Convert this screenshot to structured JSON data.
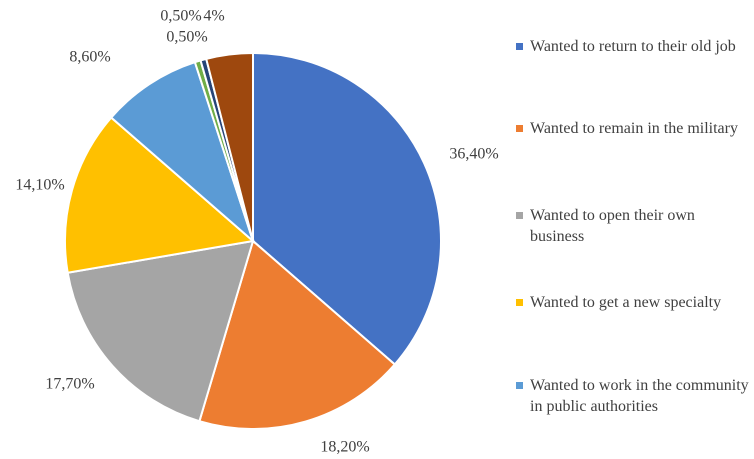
{
  "chart_data": {
    "type": "pie",
    "categories": [
      "Wanted to return to their old job",
      "Wanted to remain in the military",
      "Wanted to open their own business",
      "Wanted to get a new specialty",
      "Wanted to work in the community in public authorities",
      null,
      null,
      null
    ],
    "values": [
      36.4,
      18.2,
      17.7,
      14.1,
      8.6,
      0.5,
      0.5,
      4
    ],
    "value_labels": [
      "36,40%",
      "18,20%",
      "17,70%",
      "14,10%",
      "8,60%",
      "0,50%",
      "0,50%",
      "4%"
    ],
    "colors": [
      "#4472c4",
      "#ed7d31",
      "#a5a5a5",
      "#ffc000",
      "#5b9bd5",
      "#70ad47",
      "#264478",
      "#9e480e"
    ],
    "legend": "right"
  }
}
